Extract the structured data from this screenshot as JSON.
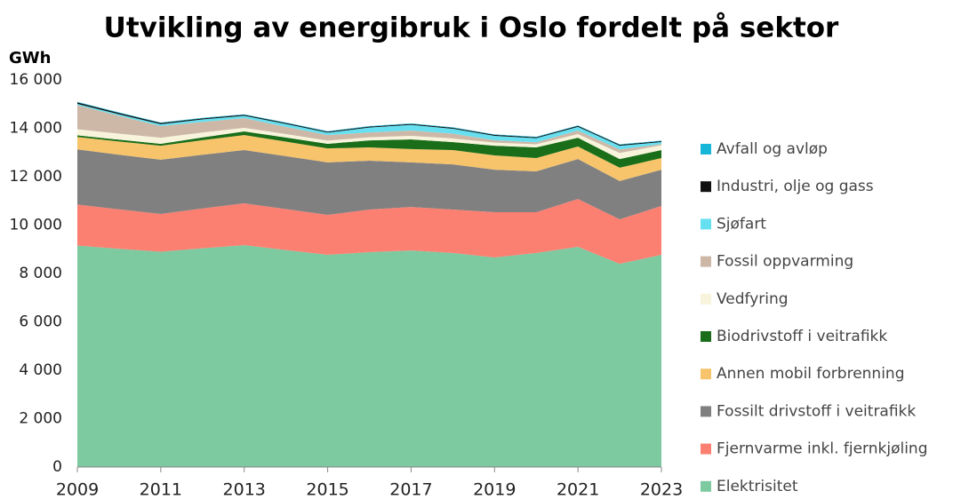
{
  "chart_data": {
    "type": "stacked-area",
    "title": "Utvikling av energibruk i Oslo fordelt på sektor",
    "y_label": "GWh",
    "x": [
      2009,
      2010,
      2011,
      2012,
      2013,
      2014,
      2015,
      2016,
      2017,
      2018,
      2019,
      2020,
      2021,
      2022,
      2023
    ],
    "xlim": [
      2009,
      2023
    ],
    "xticks": [
      2009,
      2011,
      2013,
      2015,
      2017,
      2019,
      2021,
      2023
    ],
    "ylim": [
      0,
      16000
    ],
    "yticks": [
      0,
      {
        "value": 2000,
        "label": "2 000"
      },
      {
        "value": 4000,
        "label": "4 000"
      },
      {
        "value": 6000,
        "label": "6 000"
      },
      {
        "value": 8000,
        "label": "8 000"
      },
      {
        "value": 10000,
        "label": "10 000"
      },
      {
        "value": 12000,
        "label": "12 000"
      },
      {
        "value": 14000,
        "label": "14 000"
      },
      {
        "value": 16000,
        "label": "16 000"
      }
    ],
    "grid": false,
    "legend": "right",
    "series": [
      {
        "name": "Elektrisitet",
        "color": "#7dc9a0",
        "values": [
          9150,
          9020,
          8900,
          9040,
          9170,
          8970,
          8770,
          8880,
          8950,
          8850,
          8660,
          8850,
          9100,
          8400,
          8770
        ]
      },
      {
        "name": "Fjernvarme inkl. fjernkjøling",
        "color": "#fb8072",
        "values": [
          1700,
          1630,
          1560,
          1650,
          1730,
          1690,
          1650,
          1760,
          1800,
          1790,
          1870,
          1680,
          1980,
          1840,
          2020
        ]
      },
      {
        "name": "Fossilt drivstoff i veitrafikk",
        "color": "#808080",
        "values": [
          2280,
          2260,
          2240,
          2220,
          2200,
          2190,
          2170,
          2020,
          1840,
          1870,
          1760,
          1690,
          1650,
          1580,
          1500
        ]
      },
      {
        "name": "Annen mobil forbrenning",
        "color": "#f7c46b",
        "values": [
          510,
          545,
          580,
          600,
          620,
          600,
          580,
          550,
          550,
          590,
          590,
          550,
          520,
          550,
          480
        ]
      },
      {
        "name": "Biodrivstoff i veitrafikk",
        "color": "#1a6e1a",
        "values": [
          70,
          75,
          80,
          115,
          150,
          170,
          190,
          290,
          400,
          330,
          400,
          440,
          360,
          360,
          330
        ]
      },
      {
        "name": "Vedfyring",
        "color": "#f8f4dc",
        "values": [
          250,
          250,
          250,
          200,
          150,
          140,
          130,
          130,
          150,
          150,
          130,
          130,
          150,
          250,
          200
        ]
      },
      {
        "name": "Fossil oppvarming",
        "color": "#cdb8a8",
        "values": [
          1000,
          740,
          480,
          440,
          400,
          300,
          230,
          200,
          220,
          200,
          100,
          80,
          150,
          150,
          50
        ]
      },
      {
        "name": "Sjøfart",
        "color": "#66e0f0",
        "values": [
          50,
          60,
          80,
          100,
          100,
          120,
          100,
          200,
          230,
          200,
          180,
          170,
          150,
          150,
          80
        ]
      },
      {
        "name": "Industri, olje og gass",
        "color": "#111111",
        "values": [
          60,
          55,
          50,
          45,
          40,
          40,
          40,
          40,
          40,
          40,
          40,
          40,
          40,
          40,
          40
        ]
      },
      {
        "name": "Avfall og avløp",
        "color": "#17b6d8",
        "values": [
          20,
          20,
          20,
          20,
          20,
          20,
          20,
          20,
          20,
          20,
          20,
          20,
          20,
          20,
          20
        ]
      }
    ]
  }
}
